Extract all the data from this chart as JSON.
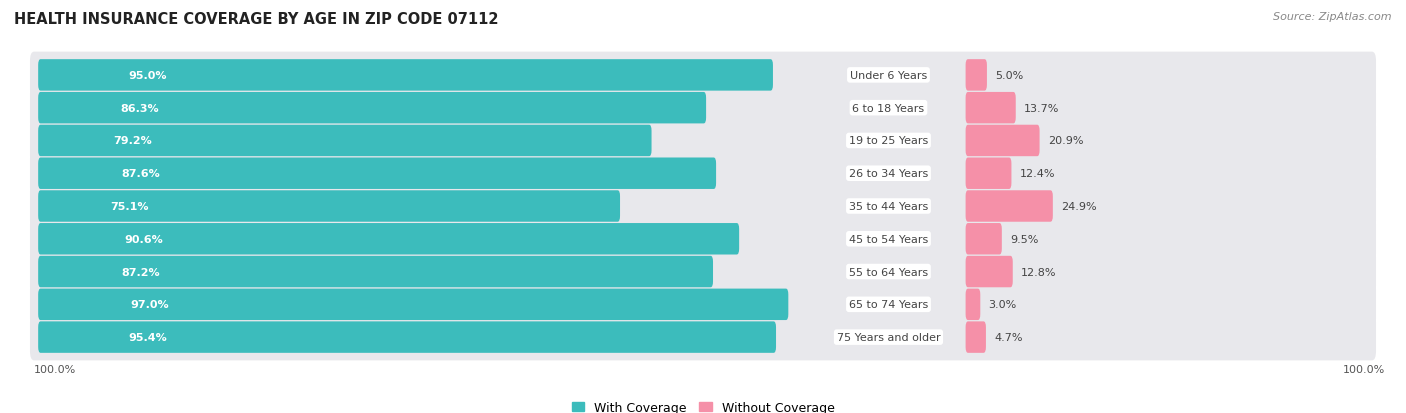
{
  "title": "HEALTH INSURANCE COVERAGE BY AGE IN ZIP CODE 07112",
  "source": "Source: ZipAtlas.com",
  "categories": [
    "Under 6 Years",
    "6 to 18 Years",
    "19 to 25 Years",
    "26 to 34 Years",
    "35 to 44 Years",
    "45 to 54 Years",
    "55 to 64 Years",
    "65 to 74 Years",
    "75 Years and older"
  ],
  "with_coverage": [
    95.0,
    86.3,
    79.2,
    87.6,
    75.1,
    90.6,
    87.2,
    97.0,
    95.4
  ],
  "without_coverage": [
    5.0,
    13.7,
    20.9,
    12.4,
    24.9,
    9.5,
    12.8,
    3.0,
    4.7
  ],
  "color_with": "#3CBCBC",
  "color_without": "#F590A8",
  "bar_row_bg": "#E8E8EC",
  "background_color": "#FFFFFF",
  "title_fontsize": 10.5,
  "source_fontsize": 8,
  "bar_label_fontsize": 8,
  "category_fontsize": 8,
  "legend_fontsize": 9,
  "axis_label_fontsize": 8
}
